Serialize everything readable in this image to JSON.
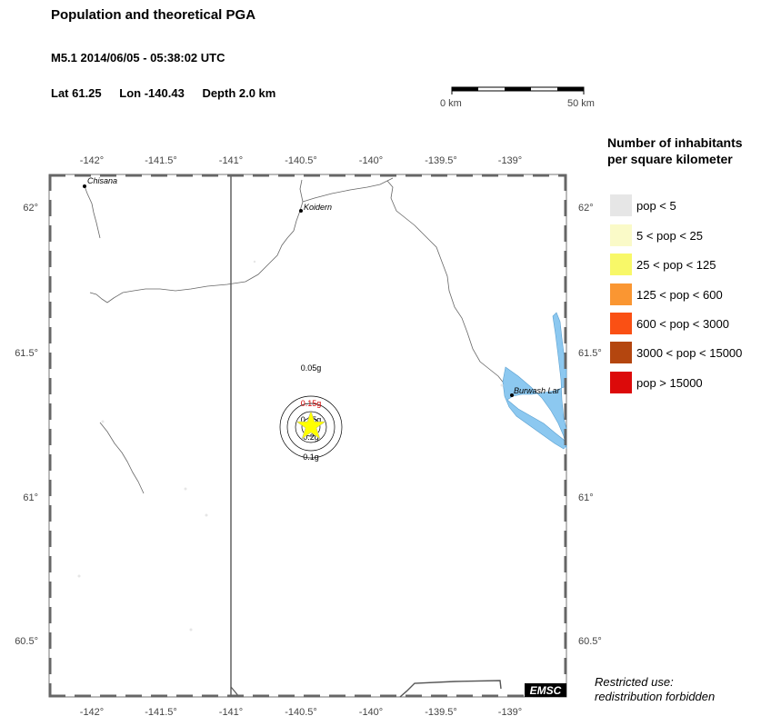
{
  "header": {
    "title": "Population and theoretical PGA",
    "event": "M5.1  2014/06/05 - 05:38:02 UTC",
    "lat": "Lat 61.25",
    "lon": "Lon -140.43",
    "depth": "Depth  2.0 km"
  },
  "scale_bar": {
    "start_label": "0 km",
    "end_label": "50 km"
  },
  "axes": {
    "x_ticks": [
      "-142°",
      "-141.5°",
      "-141°",
      "-140.5°",
      "-140°",
      "-139.5°",
      "-139°"
    ],
    "y_ticks": [
      "62°",
      "61.5°",
      "61°",
      "60.5°"
    ]
  },
  "places": [
    {
      "name": "Chisana"
    },
    {
      "name": "Koidern"
    },
    {
      "name": "Burwash Lar"
    }
  ],
  "pga_contours": [
    {
      "label": "0.05g",
      "color": "#000000"
    },
    {
      "label": "0.15g",
      "color": "#d40000"
    },
    {
      "label": "0.25g",
      "color": "#000000"
    },
    {
      "label": "0.2g",
      "color": "#000000"
    },
    {
      "label": "0.1g",
      "color": "#000000"
    }
  ],
  "epicenter": {
    "symbol": "star-icon",
    "color": "#ffff00"
  },
  "legend": {
    "title_line1": "Number of inhabitants",
    "title_line2": "per square kilometer",
    "items": [
      {
        "label": "pop < 5",
        "color": "#e6e6e6"
      },
      {
        "label": "5 < pop < 25",
        "color": "#fafac8"
      },
      {
        "label": "25 < pop < 125",
        "color": "#f8f868"
      },
      {
        "label": "125 < pop < 600",
        "color": "#fa9632"
      },
      {
        "label": "600 < pop < 3000",
        "color": "#fa5014"
      },
      {
        "label": "3000 < pop < 15000",
        "color": "#b4460f"
      },
      {
        "label": "pop > 15000",
        "color": "#dc0a0a"
      }
    ]
  },
  "logo": "EMSC",
  "notice": {
    "line1": "Restricted use:",
    "line2": "redistribution forbidden"
  },
  "colors": {
    "water": "#8cc8f0",
    "frame": "#555555",
    "border": "#555555",
    "river": "#666666"
  }
}
